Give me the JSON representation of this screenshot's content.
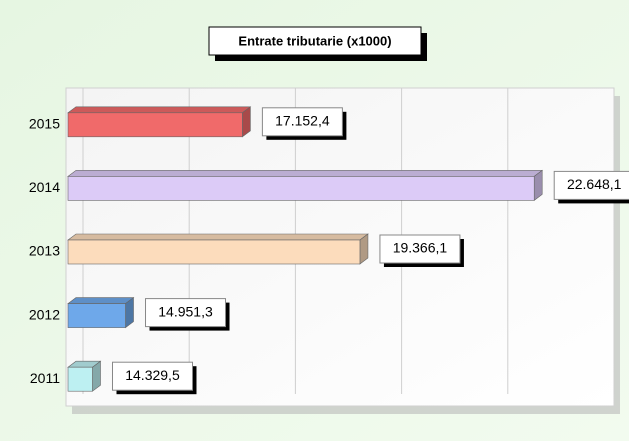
{
  "chart_data": {
    "type": "bar",
    "orientation": "horizontal",
    "title": "Entrate tributarie (x1000)",
    "categories": [
      "2015",
      "2014",
      "2013",
      "2012",
      "2011"
    ],
    "values": [
      17152.4,
      22648.1,
      19366.1,
      14951.3,
      14329.5
    ],
    "value_labels": [
      "17.152,4",
      "22.648,1",
      "19.366,1",
      "14.951,3",
      "14.329,5"
    ],
    "colors": [
      "#f06a6a",
      "#dccbf7",
      "#fcdcbc",
      "#6ea8ea",
      "#bdf0f2"
    ],
    "xlim": [
      14000,
      24000
    ],
    "xticks": [
      14000,
      16000,
      18000,
      20000,
      22000,
      24000
    ],
    "grid": true
  }
}
